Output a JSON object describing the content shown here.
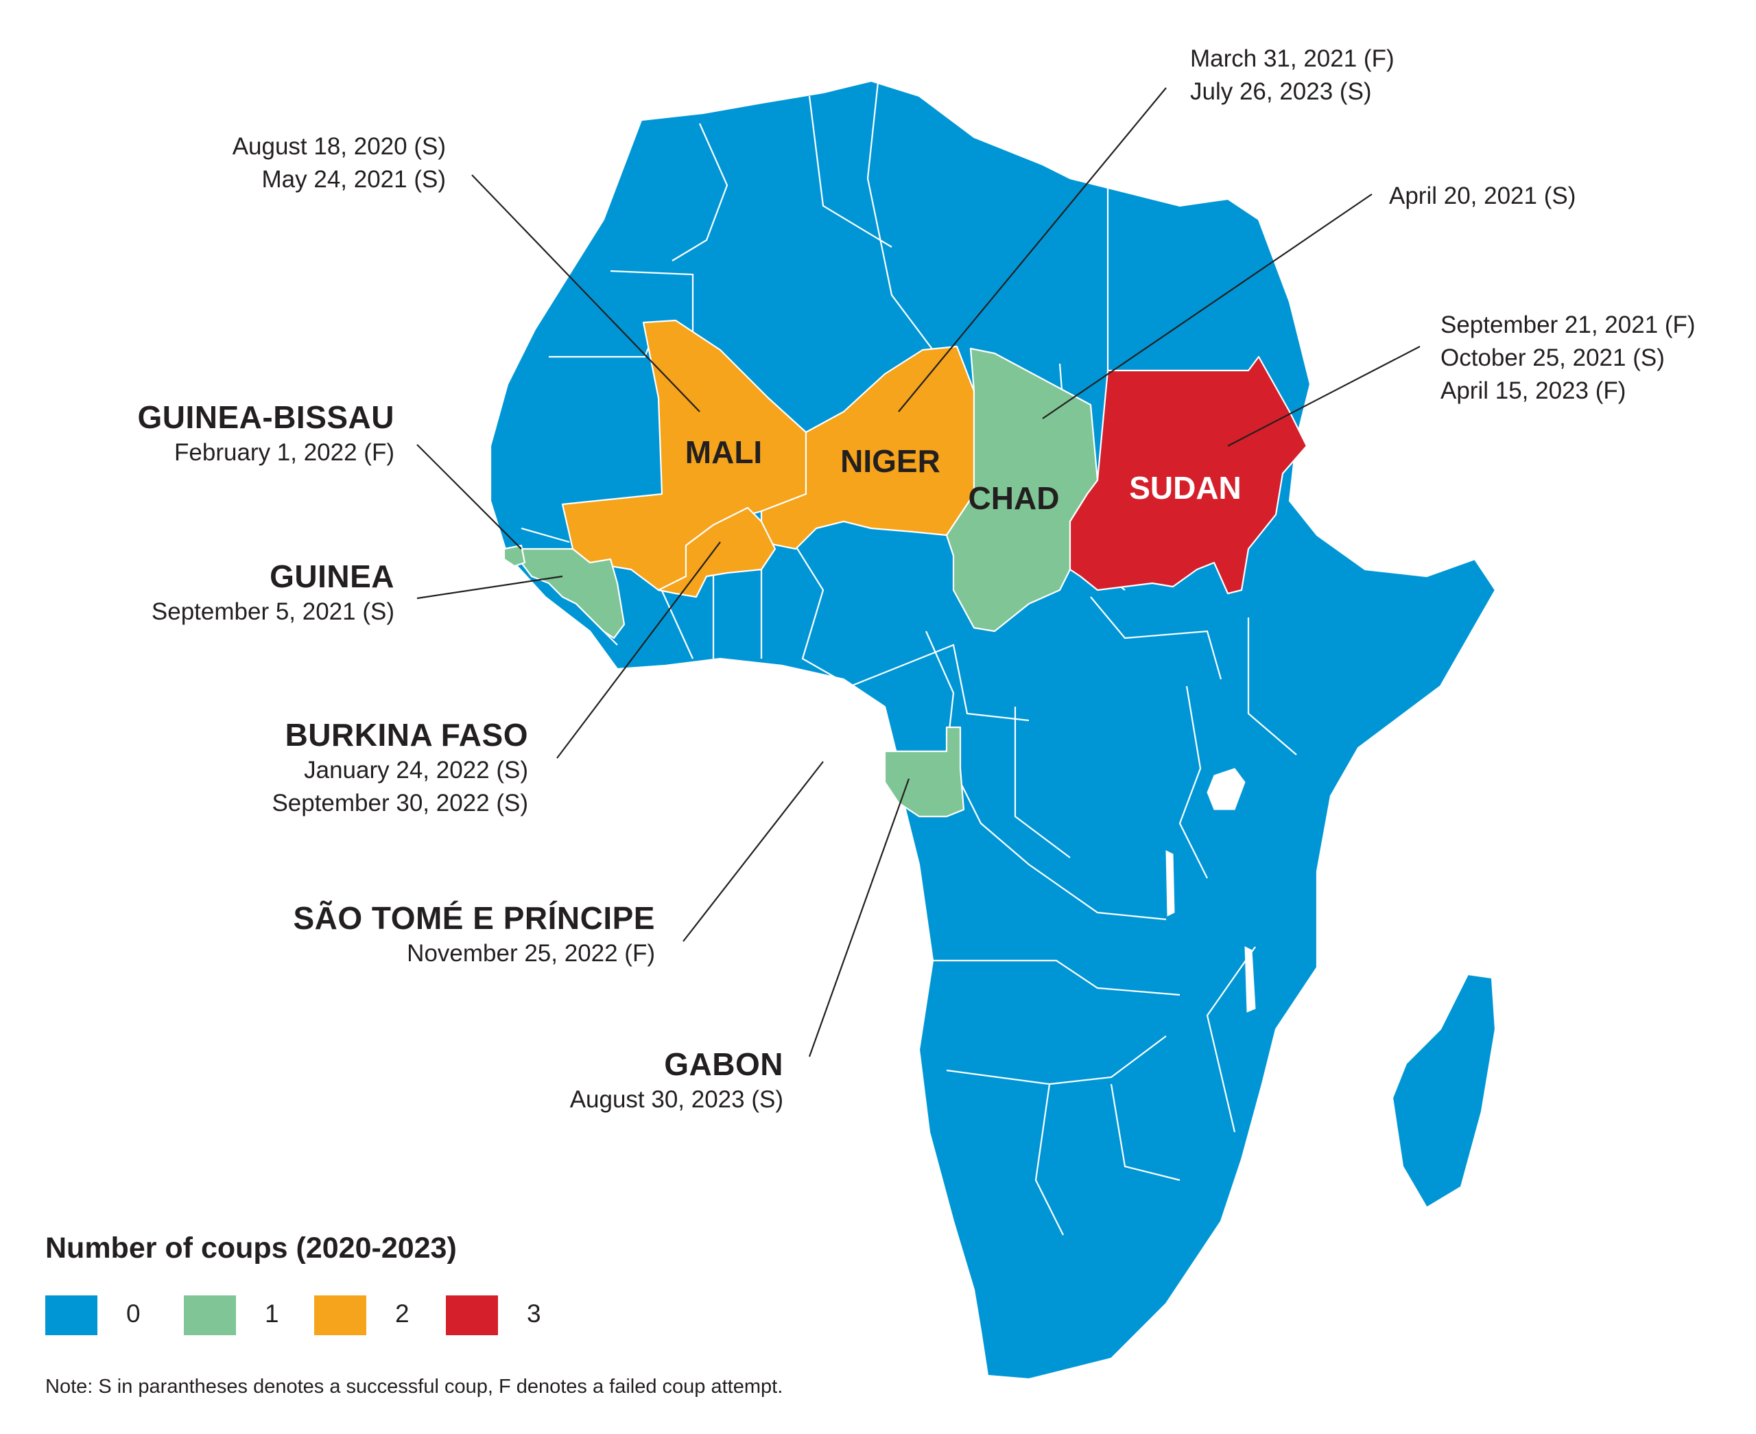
{
  "legend": {
    "title": "Number of coups (2020-2023)",
    "items": [
      {
        "label": "0",
        "color": "#0096d6"
      },
      {
        "label": "1",
        "color": "#7fc595"
      },
      {
        "label": "2",
        "color": "#f5a41c"
      },
      {
        "label": "3",
        "color": "#d51f2a"
      }
    ]
  },
  "note": "Note: S in parantheses denotes a successful coup, F denotes a failed coup attempt.",
  "map_labels": {
    "mali": "MALI",
    "niger": "NIGER",
    "chad": "CHAD",
    "sudan": "SUDAN"
  },
  "annotations": {
    "mali": {
      "lines": [
        "August 18, 2020 (S)",
        "May 24, 2021 (S)"
      ]
    },
    "niger": {
      "lines": [
        "March 31, 2021 (F)",
        "July 26, 2023 (S)"
      ]
    },
    "chad": {
      "lines": [
        "April 20, 2021 (S)"
      ]
    },
    "sudan": {
      "lines": [
        "September 21, 2021 (F)",
        "October 25, 2021 (S)",
        "April 15, 2023 (F)"
      ]
    },
    "guinea_bissau": {
      "name": "GUINEA-BISSAU",
      "lines": [
        "February 1, 2022 (F)"
      ]
    },
    "guinea": {
      "name": "GUINEA",
      "lines": [
        "September 5, 2021 (S)"
      ]
    },
    "burkina_faso": {
      "name": "BURKINA FASO",
      "lines": [
        "January 24, 2022 (S)",
        "September 30, 2022 (S)"
      ]
    },
    "sao_tome": {
      "name": "SÃO TOMÉ E PRÍNCIPE",
      "lines": [
        "November 25, 2022 (F)"
      ]
    },
    "gabon": {
      "name": "GABON",
      "lines": [
        "August 30, 2023 (S)"
      ]
    }
  },
  "coup_counts": {
    "mali": 2,
    "niger": 2,
    "burkina_faso": 2,
    "chad": 1,
    "guinea": 1,
    "guinea_bissau": 1,
    "gabon": 1,
    "sudan": 3,
    "sao_tome": 1
  }
}
